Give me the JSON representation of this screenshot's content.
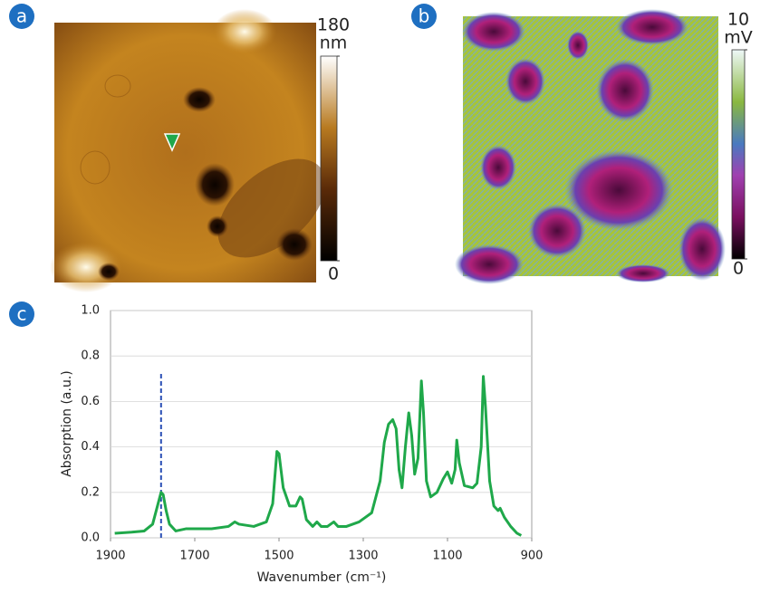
{
  "chart_data": [
    {
      "type": "image",
      "panel_label": "a",
      "colorbar_ticks": [
        0,
        180
      ],
      "colorbar_lim": [
        0,
        180
      ],
      "unit": "nm"
    },
    {
      "type": "image",
      "panel_label": "b",
      "colorbar_ticks": [
        0,
        10
      ],
      "colorbar_lim": [
        0,
        10
      ],
      "unit": "mV"
    },
    {
      "type": "line",
      "panel_label": "c",
      "xlabel": "Wavenumber (cm⁻¹)",
      "ylabel": "Absorption (a.u.)",
      "xlim": [
        1900,
        900
      ],
      "ylim": [
        0,
        1
      ],
      "xticks": [
        1900,
        1700,
        1500,
        1300,
        1100,
        900
      ],
      "yticks": [
        {
          "value": 0,
          "label": "0.0"
        },
        {
          "value": 0.2,
          "label": "0.2"
        },
        {
          "value": 0.4,
          "label": "0.4"
        },
        {
          "value": 0.6,
          "label": "0.6"
        },
        {
          "value": 0.8,
          "label": "0.8"
        },
        {
          "value": 1,
          "label": "1.0"
        }
      ],
      "grid": true,
      "color": "#1fa84a",
      "reference_line": {
        "x": 1780,
        "top": 0.73,
        "color": "#2a4fb5"
      },
      "x": [
        1890,
        1850,
        1820,
        1800,
        1790,
        1780,
        1775,
        1768,
        1760,
        1745,
        1720,
        1700,
        1660,
        1620,
        1605,
        1595,
        1560,
        1530,
        1515,
        1505,
        1500,
        1490,
        1475,
        1460,
        1450,
        1445,
        1435,
        1420,
        1410,
        1400,
        1385,
        1370,
        1360,
        1340,
        1310,
        1295,
        1280,
        1260,
        1250,
        1240,
        1230,
        1222,
        1215,
        1208,
        1200,
        1192,
        1185,
        1178,
        1170,
        1162,
        1157,
        1150,
        1140,
        1125,
        1110,
        1100,
        1090,
        1082,
        1078,
        1072,
        1060,
        1040,
        1030,
        1020,
        1015,
        1010,
        1000,
        990,
        980,
        975,
        965,
        950,
        935,
        925
      ],
      "values": [
        0.02,
        0.025,
        0.03,
        0.06,
        0.13,
        0.2,
        0.19,
        0.12,
        0.06,
        0.03,
        0.04,
        0.04,
        0.04,
        0.05,
        0.07,
        0.06,
        0.05,
        0.07,
        0.15,
        0.38,
        0.37,
        0.22,
        0.14,
        0.14,
        0.18,
        0.17,
        0.08,
        0.05,
        0.07,
        0.05,
        0.05,
        0.07,
        0.05,
        0.05,
        0.07,
        0.09,
        0.11,
        0.25,
        0.42,
        0.5,
        0.52,
        0.48,
        0.3,
        0.22,
        0.4,
        0.55,
        0.45,
        0.28,
        0.35,
        0.69,
        0.55,
        0.25,
        0.18,
        0.2,
        0.26,
        0.29,
        0.24,
        0.3,
        0.43,
        0.33,
        0.23,
        0.22,
        0.24,
        0.4,
        0.71,
        0.58,
        0.25,
        0.14,
        0.12,
        0.13,
        0.09,
        0.05,
        0.02,
        0.01
      ]
    }
  ]
}
